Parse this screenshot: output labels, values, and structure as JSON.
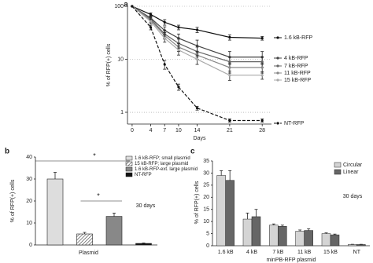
{
  "chart_data": [
    {
      "type": "line",
      "label": "a",
      "y_label": "% of RFP(+) cells",
      "x_label": "Days",
      "log_y": true,
      "grid": true,
      "x": [
        0,
        4,
        7,
        10,
        14,
        21,
        28
      ],
      "xlim": [
        -1,
        30
      ],
      "xticks": [
        0,
        4,
        7,
        10,
        14,
        21,
        28
      ],
      "ylim": [
        0.6,
        100
      ],
      "yticks": [
        1,
        10,
        100
      ],
      "series": [
        {
          "name": "1.6 kB-RFP",
          "color": "#111111",
          "dash": false,
          "values": [
            100,
            70,
            50,
            40,
            36,
            26,
            25
          ],
          "errors": [
            0,
            5,
            6,
            4,
            4,
            3,
            2
          ]
        },
        {
          "name": "4 kB-RFP",
          "color": "#444444",
          "dash": false,
          "values": [
            100,
            60,
            35,
            25,
            18,
            11,
            11
          ],
          "errors": [
            0,
            6,
            6,
            5,
            5,
            3,
            3
          ]
        },
        {
          "name": "7 kB-RFP",
          "color": "#666666",
          "dash": false,
          "values": [
            100,
            58,
            30,
            20,
            14,
            9,
            9
          ],
          "errors": [
            0,
            5,
            5,
            4,
            3,
            2,
            2
          ]
        },
        {
          "name": "11 kB-RFP",
          "color": "#888888",
          "dash": false,
          "values": [
            100,
            55,
            28,
            17,
            12,
            7,
            7
          ],
          "errors": [
            0,
            5,
            4,
            3,
            2,
            1.5,
            1.5
          ]
        },
        {
          "name": "15 kB-RFP",
          "color": "#aaaaaa",
          "dash": false,
          "values": [
            100,
            52,
            25,
            15,
            10,
            5,
            5
          ],
          "errors": [
            0,
            5,
            4,
            3,
            2,
            1,
            0.8
          ]
        },
        {
          "name": "NT-RFP",
          "color": "#111111",
          "dash": true,
          "values": [
            100,
            40,
            8,
            3,
            1.2,
            0.7,
            0.7
          ],
          "errors": [
            0,
            4,
            1.5,
            0.4,
            0.1,
            0.05,
            0.05
          ]
        }
      ]
    },
    {
      "type": "bar",
      "label": "b",
      "y_label": "% of RFP(+) cells",
      "categories": [
        "Plasmid"
      ],
      "annotation": "30 days",
      "significance_marks": [
        "*",
        "*"
      ],
      "ylim": [
        0,
        40
      ],
      "yticks": [
        0,
        10,
        20,
        30,
        40
      ],
      "series": [
        {
          "name": "1.6 kB-RFP; small plasmid",
          "color": "#dddddd",
          "hatch": false,
          "values": [
            30
          ],
          "errors": [
            3
          ]
        },
        {
          "name": "15 kB-RFP; large plasmid",
          "color": "#bbbbbb",
          "hatch": true,
          "values": [
            5
          ],
          "errors": [
            0.7
          ]
        },
        {
          "name": "1.6 kB-RFP-ext. large plasmid",
          "color": "#888888",
          "hatch": false,
          "values": [
            13
          ],
          "errors": [
            1.5
          ]
        },
        {
          "name": "NT-RFP",
          "color": "#111111",
          "hatch": false,
          "values": [
            0.7
          ],
          "errors": [
            0.2
          ]
        }
      ]
    },
    {
      "type": "grouped_bar",
      "label": "c",
      "y_label": "% of RFP(+) cells",
      "x_label": "minPB-RFP plasmid",
      "annotation": "30 days",
      "categories": [
        "1.6 kB",
        "4 kB",
        "7 kB",
        "11 kB",
        "15 kB",
        "NT"
      ],
      "ylim": [
        0,
        35
      ],
      "yticks": [
        0,
        5,
        10,
        15,
        20,
        25,
        30,
        35
      ],
      "series": [
        {
          "name": "Circular",
          "color": "#d4d4d4",
          "values": [
            29,
            11,
            8.5,
            6,
            5,
            0.5
          ],
          "errors": [
            2,
            2.5,
            0.5,
            0.5,
            0.3,
            0.1
          ]
        },
        {
          "name": "Linear",
          "color": "#666666",
          "values": [
            27,
            12,
            8,
            6.3,
            4.5,
            0.5
          ],
          "errors": [
            4,
            3,
            0.5,
            0.7,
            0.3,
            0.1
          ]
        }
      ]
    }
  ]
}
